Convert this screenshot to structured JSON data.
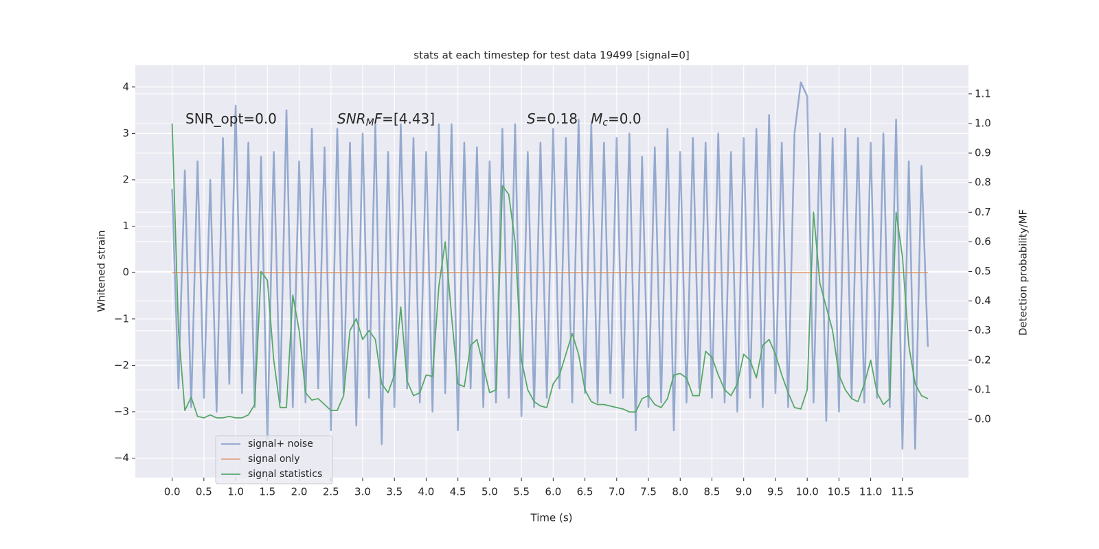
{
  "chart_data": {
    "type": "line",
    "title": "stats at each timestep for test data 19499 [signal=0]",
    "xlabel": "Time (s)",
    "ylabel": "Whitened strain",
    "y2label": "Detection probability/MF",
    "x": [
      0.0,
      0.1,
      0.2,
      0.3,
      0.4,
      0.5,
      0.6,
      0.7,
      0.8,
      0.9,
      1.0,
      1.1,
      1.2,
      1.3,
      1.4,
      1.5,
      1.6,
      1.7,
      1.8,
      1.9,
      2.0,
      2.1,
      2.2,
      2.3,
      2.4,
      2.5,
      2.6,
      2.7,
      2.8,
      2.9,
      3.0,
      3.1,
      3.2,
      3.3,
      3.4,
      3.5,
      3.6,
      3.7,
      3.8,
      3.9,
      4.0,
      4.1,
      4.2,
      4.3,
      4.4,
      4.5,
      4.6,
      4.7,
      4.8,
      4.9,
      5.0,
      5.1,
      5.2,
      5.3,
      5.4,
      5.5,
      5.6,
      5.7,
      5.8,
      5.9,
      6.0,
      6.1,
      6.2,
      6.3,
      6.4,
      6.5,
      6.6,
      6.7,
      6.8,
      6.9,
      7.0,
      7.1,
      7.2,
      7.3,
      7.4,
      7.5,
      7.6,
      7.7,
      7.8,
      7.9,
      8.0,
      8.1,
      8.2,
      8.3,
      8.4,
      8.5,
      8.6,
      8.7,
      8.8,
      8.9,
      9.0,
      9.1,
      9.2,
      9.3,
      9.4,
      9.5,
      9.6,
      9.7,
      9.8,
      9.9,
      10.0,
      10.1,
      10.2,
      10.3,
      10.4,
      10.5,
      10.6,
      10.7,
      10.8,
      10.9,
      11.0,
      11.1,
      11.2,
      11.3,
      11.4,
      11.5,
      11.6,
      11.7,
      11.8,
      11.9
    ],
    "series": [
      {
        "name": "signal+ noise",
        "color": "#4c72b0",
        "values": [
          1.8,
          -2.5,
          2.2,
          -2.9,
          2.4,
          -2.7,
          2.0,
          -3.0,
          2.9,
          -2.4,
          3.6,
          -2.6,
          2.8,
          -2.9,
          2.5,
          -3.6,
          2.6,
          -2.8,
          3.5,
          -2.9,
          2.4,
          -2.8,
          3.1,
          -2.5,
          2.7,
          -3.4,
          3.1,
          -2.6,
          2.8,
          -3.3,
          3.0,
          -2.7,
          3.2,
          -3.7,
          2.6,
          -2.9,
          3.2,
          -2.5,
          2.9,
          -2.8,
          2.6,
          -3.0,
          3.2,
          -2.6,
          3.2,
          -3.4,
          2.8,
          -2.5,
          2.7,
          -2.9,
          2.4,
          -2.8,
          3.1,
          -2.7,
          3.2,
          -3.1,
          2.6,
          -2.9,
          2.8,
          -2.7,
          3.1,
          -2.5,
          2.9,
          -2.8,
          3.3,
          -2.6,
          3.2,
          -2.8,
          2.8,
          -2.6,
          2.9,
          -2.7,
          3.0,
          -3.4,
          2.5,
          -2.9,
          2.7,
          -2.8,
          3.1,
          -3.4,
          2.6,
          -2.8,
          2.9,
          -2.5,
          2.8,
          -2.7,
          3.0,
          -2.8,
          2.6,
          -3.0,
          2.9,
          -2.7,
          3.1,
          -2.9,
          3.4,
          -2.6,
          2.8,
          -2.9,
          3.0,
          4.1,
          3.8,
          -2.8,
          3.0,
          -3.2,
          2.9,
          -3.0,
          3.1,
          -2.7,
          2.9,
          -2.8,
          2.8,
          -2.7,
          3.0,
          -2.9,
          3.3,
          -3.8,
          2.4,
          -3.8,
          2.3,
          -1.6
        ]
      },
      {
        "name": "signal only",
        "color": "#dd8452",
        "values": [
          0,
          0,
          0,
          0,
          0,
          0,
          0,
          0,
          0,
          0,
          0,
          0,
          0,
          0,
          0,
          0,
          0,
          0,
          0,
          0,
          0,
          0,
          0,
          0,
          0,
          0,
          0,
          0,
          0,
          0,
          0,
          0,
          0,
          0,
          0,
          0,
          0,
          0,
          0,
          0,
          0,
          0,
          0,
          0,
          0,
          0,
          0,
          0,
          0,
          0,
          0,
          0,
          0,
          0,
          0,
          0,
          0,
          0,
          0,
          0,
          0,
          0,
          0,
          0,
          0,
          0,
          0,
          0,
          0,
          0,
          0,
          0,
          0,
          0,
          0,
          0,
          0,
          0,
          0,
          0,
          0,
          0,
          0,
          0,
          0,
          0,
          0,
          0,
          0,
          0,
          0,
          0,
          0,
          0,
          0,
          0,
          0,
          0,
          0,
          0,
          0,
          0,
          0,
          0,
          0,
          0,
          0,
          0,
          0,
          0,
          0,
          0,
          0,
          0,
          0,
          0,
          0,
          0,
          0,
          0
        ]
      },
      {
        "name": "signal statistics",
        "color": "#55a868",
        "axis": "y2",
        "values": [
          1.0,
          0.3,
          0.03,
          0.075,
          0.01,
          0.005,
          0.015,
          0.005,
          0.005,
          0.01,
          0.005,
          0.005,
          0.015,
          0.05,
          0.5,
          0.47,
          0.2,
          0.04,
          0.04,
          0.42,
          0.3,
          0.09,
          0.065,
          0.07,
          0.05,
          0.03,
          0.03,
          0.08,
          0.3,
          0.34,
          0.27,
          0.3,
          0.27,
          0.12,
          0.09,
          0.15,
          0.38,
          0.13,
          0.08,
          0.09,
          0.15,
          0.145,
          0.45,
          0.6,
          0.35,
          0.12,
          0.11,
          0.25,
          0.27,
          0.18,
          0.09,
          0.1,
          0.79,
          0.76,
          0.6,
          0.2,
          0.1,
          0.06,
          0.045,
          0.04,
          0.12,
          0.15,
          0.22,
          0.29,
          0.22,
          0.1,
          0.06,
          0.05,
          0.05,
          0.045,
          0.04,
          0.035,
          0.025,
          0.025,
          0.07,
          0.08,
          0.05,
          0.04,
          0.07,
          0.15,
          0.155,
          0.14,
          0.08,
          0.08,
          0.23,
          0.21,
          0.15,
          0.1,
          0.08,
          0.12,
          0.22,
          0.2,
          0.14,
          0.25,
          0.27,
          0.22,
          0.15,
          0.09,
          0.04,
          0.035,
          0.1,
          0.7,
          0.46,
          0.38,
          0.3,
          0.15,
          0.1,
          0.07,
          0.06,
          0.12,
          0.2,
          0.09,
          0.05,
          0.07,
          0.7,
          0.55,
          0.25,
          0.12,
          0.08,
          0.07
        ]
      }
    ],
    "xlim": [
      -0.58,
      12.54
    ],
    "xticks": [
      {
        "value": 0,
        "label": "0.0"
      },
      {
        "value": 0.5,
        "label": "0.5"
      },
      {
        "value": 1,
        "label": "1.0"
      },
      {
        "value": 1.5,
        "label": "1.5"
      },
      {
        "value": 2,
        "label": "2.0"
      },
      {
        "value": 2.5,
        "label": "2.5"
      },
      {
        "value": 3,
        "label": "3.0"
      },
      {
        "value": 3.5,
        "label": "3.5"
      },
      {
        "value": 4,
        "label": "4.0"
      },
      {
        "value": 4.5,
        "label": "4.5"
      },
      {
        "value": 5,
        "label": "5.0"
      },
      {
        "value": 5.5,
        "label": "5.5"
      },
      {
        "value": 6,
        "label": "6.0"
      },
      {
        "value": 6.5,
        "label": "6.5"
      },
      {
        "value": 7,
        "label": "7.0"
      },
      {
        "value": 7.5,
        "label": "7.5"
      },
      {
        "value": 8,
        "label": "8.0"
      },
      {
        "value": 8.5,
        "label": "8.5"
      },
      {
        "value": 9,
        "label": "9.0"
      },
      {
        "value": 9.5,
        "label": "9.5"
      },
      {
        "value": 10,
        "label": "10.0"
      },
      {
        "value": 10.5,
        "label": "10.5"
      },
      {
        "value": 11,
        "label": "11.0"
      },
      {
        "value": 11.5,
        "label": "11.5"
      }
    ],
    "ylim": [
      -4.42,
      4.47
    ],
    "yticks": [
      {
        "value": -4,
        "label": "−4"
      },
      {
        "value": -3,
        "label": "−3"
      },
      {
        "value": -2,
        "label": "−2"
      },
      {
        "value": -1,
        "label": "−1"
      },
      0,
      1,
      2,
      3,
      4
    ],
    "y2lim": [
      -0.197,
      1.197
    ],
    "y2ticks": [
      {
        "value": 0,
        "label": "0.0"
      },
      {
        "value": 0.1,
        "label": "0.1"
      },
      {
        "value": 0.2,
        "label": "0.2"
      },
      {
        "value": 0.3,
        "label": "0.3"
      },
      {
        "value": 0.4,
        "label": "0.4"
      },
      {
        "value": 0.5,
        "label": "0.5"
      },
      {
        "value": 0.6,
        "label": "0.6"
      },
      {
        "value": 0.7,
        "label": "0.7"
      },
      {
        "value": 0.8,
        "label": "0.8"
      },
      {
        "value": 0.9,
        "label": "0.9"
      },
      {
        "value": 1,
        "label": "1.0"
      },
      {
        "value": 1.1,
        "label": "1.1"
      }
    ],
    "grid": true,
    "legend": "lower left",
    "annotations": [
      {
        "parts": [
          {
            "text": "SNR_opt=0.0"
          }
        ]
      },
      {
        "parts": [
          {
            "text": "SNR",
            "italic": true
          },
          {
            "text": "M",
            "italic": true,
            "sub": true
          },
          {
            "text": "F",
            "italic": true
          },
          {
            "text": "=[4.43]"
          }
        ]
      },
      {
        "parts": [
          {
            "text": "S",
            "italic": true
          },
          {
            "text": "=0.18   "
          },
          {
            "text": "M",
            "italic": true
          },
          {
            "text": "c",
            "italic": true,
            "sub": true
          },
          {
            "text": "=0.0"
          }
        ]
      }
    ]
  }
}
